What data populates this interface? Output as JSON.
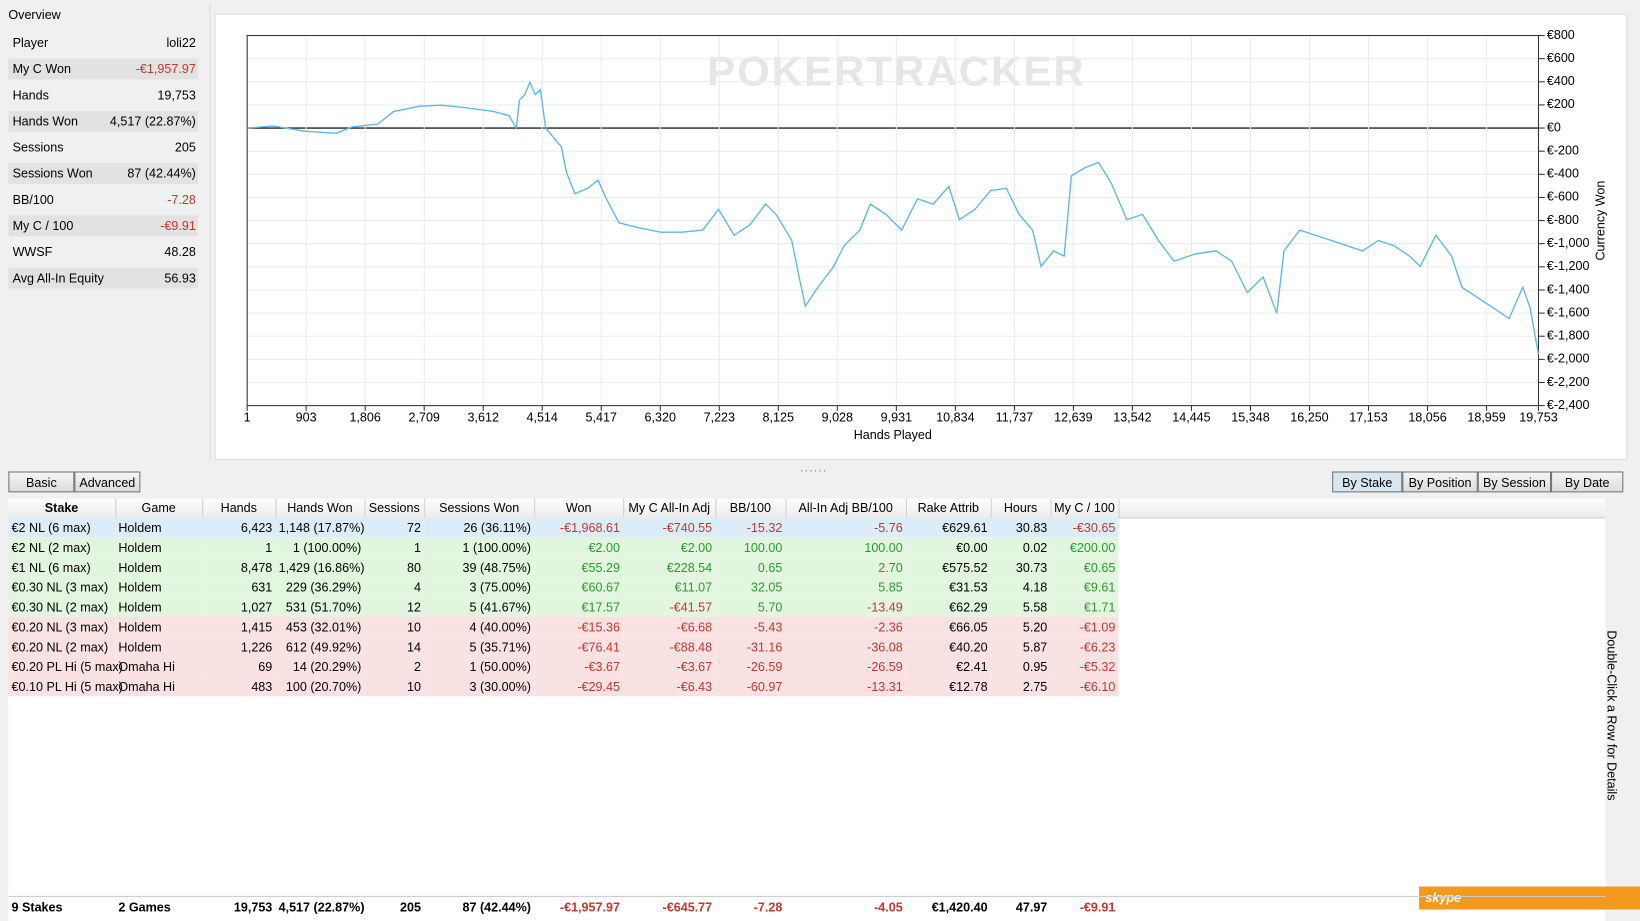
{
  "overview": {
    "title": "Overview",
    "stats": [
      {
        "label": "Player",
        "value": "loli22"
      },
      {
        "label": "My C Won",
        "value": "-€1,957.97"
      },
      {
        "label": "Hands",
        "value": "19,753"
      },
      {
        "label": "Hands Won",
        "value": "4,517 (22.87%)"
      },
      {
        "label": "Sessions",
        "value": "205"
      },
      {
        "label": "Sessions Won",
        "value": "87 (42.44%)"
      },
      {
        "label": "BB/100",
        "value": "-7.28"
      },
      {
        "label": "My C / 100",
        "value": "-€9.91"
      },
      {
        "label": "WWSF",
        "value": "48.28"
      },
      {
        "label": "Avg All-In Equity",
        "value": "56.93"
      }
    ]
  },
  "chart_data": {
    "type": "line",
    "watermark": "POKERTRACKER",
    "x_label": "Hands Played",
    "y_label": "Currency Won",
    "color": "#5bb8e8",
    "grid": true,
    "xlim": [
      1,
      19753
    ],
    "ylim": [
      -2400,
      800
    ],
    "xticks": [
      1,
      903,
      {
        "value": 1806,
        "label": "1,806"
      },
      {
        "value": 2709,
        "label": "2,709"
      },
      {
        "value": 3612,
        "label": "3,612"
      },
      {
        "value": 4514,
        "label": "4,514"
      },
      {
        "value": 5417,
        "label": "5,417"
      },
      {
        "value": 6320,
        "label": "6,320"
      },
      {
        "value": 7223,
        "label": "7,223"
      },
      {
        "value": 8125,
        "label": "8,125"
      },
      {
        "value": 9028,
        "label": "9,028"
      },
      {
        "value": 9931,
        "label": "9,931"
      },
      {
        "value": 10834,
        "label": "10,834"
      },
      {
        "value": 11737,
        "label": "11,737"
      },
      {
        "value": 12639,
        "label": "12,639"
      },
      {
        "value": 13542,
        "label": "13,542"
      },
      {
        "value": 14445,
        "label": "14,445"
      },
      {
        "value": 15348,
        "label": "15,348"
      },
      {
        "value": 16250,
        "label": "16,250"
      },
      {
        "value": 17153,
        "label": "17,153"
      },
      {
        "value": 18056,
        "label": "18,056"
      },
      {
        "value": 18959,
        "label": "18,959"
      },
      {
        "value": 19753,
        "label": "19,753"
      }
    ],
    "yticks": [
      {
        "value": 800,
        "label": "€800"
      },
      {
        "value": 600,
        "label": "€600"
      },
      {
        "value": 400,
        "label": "€400"
      },
      {
        "value": 200,
        "label": "€200"
      },
      {
        "value": 0,
        "label": "€0"
      },
      {
        "value": -200,
        "label": "€-200"
      },
      {
        "value": -400,
        "label": "€-400"
      },
      {
        "value": -600,
        "label": "€-600"
      },
      {
        "value": -800,
        "label": "€-800"
      },
      {
        "value": -1000,
        "label": "€-1,000"
      },
      {
        "value": -1200,
        "label": "€-1,200"
      },
      {
        "value": -1400,
        "label": "€-1,400"
      },
      {
        "value": -1600,
        "label": "€-1,600"
      },
      {
        "value": -1800,
        "label": "€-1,800"
      },
      {
        "value": -2000,
        "label": "€-2,000"
      },
      {
        "value": -2200,
        "label": "€-2,200"
      },
      {
        "value": -2400,
        "label": "€-2,400"
      }
    ],
    "x": [
      1,
      402,
      882,
      1363,
      1603,
      2004,
      2244,
      2644,
      2965,
      3285,
      3766,
      4006,
      4118,
      4166,
      4247,
      4327,
      4407,
      4487,
      4567,
      4807,
      4887,
      5015,
      5208,
      5368,
      5496,
      5688,
      6009,
      6329,
      6649,
      6970,
      7210,
      7450,
      7691,
      7931,
      8091,
      8331,
      8443,
      8539,
      8731,
      8972,
      9132,
      9372,
      9532,
      9773,
      10013,
      10253,
      10494,
      10734,
      10894,
      11134,
      11374,
      11615,
      11807,
      12015,
      12144,
      12336,
      12497,
      12609,
      12817,
      13025,
      13218,
      13458,
      13698,
      13939,
      14179,
      14499,
      14820,
      15060,
      15300,
      15541,
      15749,
      15861,
      16102,
      16342,
      16582,
      16822,
      17062,
      17303,
      17543,
      17783,
      17943,
      18184,
      18424,
      18584,
      18824,
      19064,
      19305,
      19513,
      19625,
      19753
    ],
    "values": [
      0,
      18,
      -27,
      -45,
      9,
      36,
      144,
      189,
      198,
      180,
      144,
      108,
      0,
      243,
      288,
      396,
      288,
      333,
      0,
      -162,
      -387,
      -567,
      -522,
      -450,
      -612,
      -819,
      -864,
      -900,
      -900,
      -882,
      -702,
      -927,
      -837,
      -657,
      -747,
      -972,
      -1287,
      -1539,
      -1377,
      -1197,
      -1017,
      -882,
      -657,
      -747,
      -882,
      -612,
      -657,
      -504,
      -792,
      -702,
      -540,
      -522,
      -747,
      -882,
      -1197,
      -1062,
      -1107,
      -414,
      -342,
      -297,
      -477,
      -792,
      -747,
      -972,
      -1152,
      -1089,
      -1062,
      -1152,
      -1422,
      -1287,
      -1602,
      -1062,
      -882,
      -927,
      -972,
      -1017,
      -1062,
      -972,
      -1017,
      -1107,
      -1197,
      -927,
      -1107,
      -1377,
      -1467,
      -1557,
      -1647,
      -1377,
      -1557,
      -1958
    ]
  },
  "buttons": [
    "Basic",
    "Advanced"
  ],
  "tabs": [
    "By Stake",
    "By Position",
    "By Session",
    "By Date"
  ],
  "table": {
    "columns": [
      "Stake",
      "Game",
      "Hands",
      "Hands Won",
      "Sessions",
      "Sessions Won",
      "Won",
      "My C All-In Adj",
      "BB/100",
      "All-In Adj BB/100",
      "Rake Attrib",
      "Hours",
      "My C / 100"
    ],
    "rows": [
      [
        "€2 NL (6 max)",
        "Holdem",
        "6,423",
        "1,148 (17.87%)",
        "72",
        "26 (36.11%)",
        "-€1,968.61",
        "-€740.55",
        "-15.32",
        "-5.76",
        "€629.61",
        "30.83",
        "-€30.65"
      ],
      [
        "€2 NL (2 max)",
        "Holdem",
        "1",
        "1 (100.00%)",
        "1",
        "1 (100.00%)",
        "€2.00",
        "€2.00",
        "100.00",
        "100.00",
        "€0.00",
        "0.02",
        "€200.00"
      ],
      [
        "€1 NL (6 max)",
        "Holdem",
        "8,478",
        "1,429 (16.86%)",
        "80",
        "39 (48.75%)",
        "€55.29",
        "€228.54",
        "0.65",
        "2.70",
        "€575.52",
        "30.73",
        "€0.65"
      ],
      [
        "€0.30 NL (3 max)",
        "Holdem",
        "631",
        "229 (36.29%)",
        "4",
        "3 (75.00%)",
        "€60.67",
        "€11.07",
        "32.05",
        "5.85",
        "€31.53",
        "4.18",
        "€9.61"
      ],
      [
        "€0.30 NL (2 max)",
        "Holdem",
        "1,027",
        "531 (51.70%)",
        "12",
        "5 (41.67%)",
        "€17.57",
        "-€41.57",
        "5.70",
        "-13.49",
        "€62.29",
        "5.58",
        "€1.71"
      ],
      [
        "€0.20 NL (3 max)",
        "Holdem",
        "1,415",
        "453 (32.01%)",
        "10",
        "4 (40.00%)",
        "-€15.36",
        "-€6.68",
        "-5.43",
        "-2.36",
        "€66.05",
        "5.20",
        "-€1.09"
      ],
      [
        "€0.20 NL (2 max)",
        "Holdem",
        "1,226",
        "612 (49.92%)",
        "14",
        "5 (35.71%)",
        "-€76.41",
        "-€88.48",
        "-31.16",
        "-36.08",
        "€40.20",
        "5.87",
        "-€6.23"
      ],
      [
        "€0.20 PL Hi (5 max)",
        "Omaha Hi",
        "69",
        "14 (20.29%)",
        "2",
        "1 (50.00%)",
        "-€3.67",
        "-€3.67",
        "-26.59",
        "-26.59",
        "€2.41",
        "0.95",
        "-€5.32"
      ],
      [
        "€0.10 PL Hi (5 max)",
        "Omaha Hi",
        "483",
        "100 (20.70%)",
        "10",
        "3 (30.00%)",
        "-€29.45",
        "-€6.43",
        "-60.97",
        "-13.31",
        "€12.78",
        "2.75",
        "-€6.10"
      ]
    ],
    "totals": [
      "9 Stakes",
      "2 Games",
      "19,753",
      "4,517 (22.87%)",
      "205",
      "87 (42.44%)",
      "-€1,957.97",
      "-€645.77",
      "-7.28",
      "-4.05",
      "€1,420.40",
      "47.97",
      "-€9.91"
    ]
  },
  "side_hint": "Double-Click a Row for Details",
  "skype": "skype"
}
